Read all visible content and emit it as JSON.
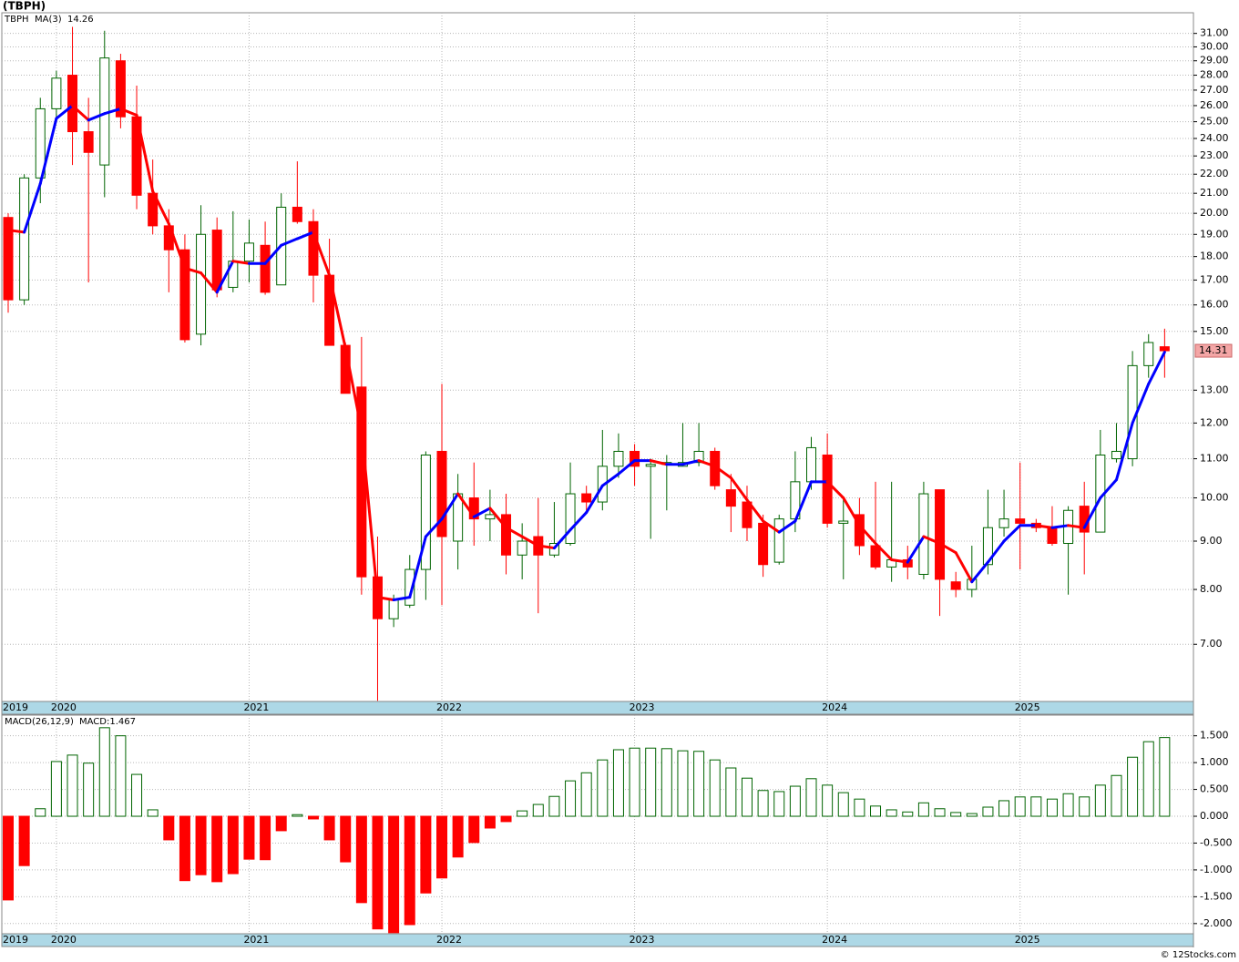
{
  "title": "(TBPH)",
  "footer": "© 12Stocks.com",
  "chart_data": [
    {
      "type": "candlestick",
      "name": "TBPH",
      "categories": [
        "2019",
        null,
        null,
        "2020",
        null,
        null,
        null,
        null,
        null,
        null,
        null,
        null,
        null,
        null,
        null,
        "2021",
        null,
        null,
        null,
        null,
        null,
        null,
        null,
        null,
        null,
        null,
        null,
        "2022",
        null,
        null,
        null,
        null,
        null,
        null,
        null,
        null,
        null,
        null,
        null,
        "2023",
        null,
        null,
        null,
        null,
        null,
        null,
        null,
        null,
        null,
        null,
        null,
        "2024",
        null,
        null,
        null,
        null,
        null,
        null,
        null,
        null,
        null,
        null,
        null,
        "2025",
        null,
        null,
        null,
        null,
        null,
        null,
        null,
        null,
        null
      ],
      "open": [
        19.8,
        16.2,
        21.8,
        25.8,
        28,
        24.4,
        22.5,
        29,
        25.3,
        21,
        19.4,
        18.3,
        14.9,
        19.2,
        16.7,
        17.8,
        18.5,
        16.8,
        20.3,
        19.6,
        17.2,
        14.5,
        13.1,
        8.25,
        7.45,
        7.7,
        8.4,
        11.2,
        9.0,
        10.0,
        9.5,
        9.6,
        8.7,
        9.1,
        8.7,
        8.95,
        10.1,
        9.9,
        10.8,
        11.2,
        10.8,
        10.85,
        10.8,
        10.9,
        11.2,
        10.2,
        9.9,
        9.4,
        8.55,
        9.5,
        10.4,
        11.1,
        9.4,
        9.6,
        8.9,
        8.45,
        8.6,
        8.3,
        10.2,
        8.15,
        8.0,
        8.5,
        9.3,
        9.5,
        9.4,
        9.3,
        8.95,
        9.8,
        9.2,
        11.0,
        11.0,
        13.8,
        14.45
      ],
      "high": [
        20,
        22,
        26.5,
        28.3,
        31.5,
        26.5,
        31.2,
        29.5,
        27.3,
        22.8,
        20.2,
        19,
        20.4,
        19.8,
        20.1,
        19.7,
        19.6,
        21.0,
        22.7,
        20.2,
        18.8,
        14.6,
        14.8,
        9.1,
        7.9,
        8.7,
        11.2,
        13.2,
        10.6,
        10.9,
        10.2,
        10.1,
        9.4,
        10.0,
        9.9,
        10.9,
        10.3,
        11.8,
        11.7,
        11.4,
        11.0,
        11.1,
        12.0,
        12.0,
        11.3,
        10.6,
        10.3,
        9.6,
        9.6,
        11.2,
        11.6,
        11.7,
        10.0,
        10.0,
        10.4,
        10.4,
        8.9,
        10.4,
        10.2,
        8.35,
        8.9,
        10.2,
        10.2,
        10.9,
        9.5,
        9.8,
        9.8,
        10.4,
        11.8,
        12.0,
        14.3,
        14.9,
        15.1
      ],
      "low": [
        15.7,
        16.0,
        20.5,
        25,
        22.5,
        16.9,
        20.8,
        24.6,
        20.2,
        19,
        16.5,
        14.6,
        14.5,
        16.3,
        16.5,
        16.9,
        16.4,
        16.8,
        19.5,
        16.1,
        14.5,
        12.9,
        7.9,
        6.1,
        7.3,
        7.65,
        7.8,
        7.7,
        8.4,
        8.9,
        9.0,
        8.3,
        8.2,
        7.55,
        8.65,
        8.9,
        9.7,
        9.7,
        10.5,
        10.3,
        9.05,
        9.7,
        10.8,
        10.8,
        10.2,
        9.2,
        9.0,
        8.25,
        8.5,
        9.2,
        10.2,
        9.3,
        8.2,
        8.7,
        8.4,
        8.15,
        8.2,
        8.2,
        7.5,
        7.85,
        7.85,
        8.3,
        9.1,
        8.4,
        9.2,
        8.9,
        7.9,
        8.3,
        9.2,
        10.9,
        10.8,
        13.4,
        13.4
      ],
      "close": [
        16.2,
        21.8,
        25.8,
        27.8,
        24.4,
        23.2,
        29.2,
        25.3,
        20.9,
        19.4,
        18.3,
        14.7,
        19,
        16.6,
        17.8,
        18.6,
        16.5,
        20.3,
        19.6,
        17.2,
        14.5,
        12.9,
        8.25,
        7.45,
        7.8,
        8.4,
        11.1,
        9.1,
        10.1,
        9.5,
        9.6,
        8.7,
        9.0,
        8.7,
        8.95,
        10.1,
        9.9,
        10.8,
        11.2,
        10.8,
        10.85,
        10.9,
        10.9,
        11.2,
        10.3,
        9.8,
        9.3,
        8.5,
        9.5,
        10.4,
        11.3,
        9.4,
        9.45,
        8.9,
        8.45,
        8.6,
        8.45,
        10.1,
        8.2,
        8.0,
        8.2,
        9.3,
        9.5,
        9.4,
        9.3,
        8.95,
        9.7,
        9.2,
        11.1,
        11.2,
        13.8,
        14.6,
        14.31
      ],
      "up_color": "#006400",
      "down_color": "#ff0000",
      "ma": {
        "name": "MA(3)",
        "up_color": "#0000ff",
        "down_color": "#ff0000",
        "values": [
          19.2,
          19.1,
          21.5,
          25.2,
          26.0,
          25.1,
          25.5,
          25.8,
          25.4,
          21.1,
          19.5,
          17.5,
          17.3,
          16.5,
          17.8,
          17.7,
          17.7,
          18.5,
          18.8,
          19.1,
          17.2,
          14.4,
          11.8,
          7.85,
          7.8,
          7.85,
          9.1,
          9.5,
          10.1,
          9.55,
          9.75,
          9.3,
          9.1,
          8.9,
          8.85,
          9.25,
          9.65,
          10.3,
          10.6,
          10.95,
          10.95,
          10.85,
          10.85,
          10.95,
          10.8,
          10.5,
          9.95,
          9.45,
          9.2,
          9.45,
          10.4,
          10.4,
          10.0,
          9.35,
          8.95,
          8.6,
          8.55,
          9.1,
          8.95,
          8.75,
          8.15,
          8.55,
          9.0,
          9.35,
          9.35,
          9.3,
          9.35,
          9.3,
          10.0,
          10.45,
          12.0,
          13.2,
          14.26
        ]
      },
      "log_scale": true,
      "grid": true,
      "ylim": [
        6.09,
        32.6
      ],
      "yticks": [
        {
          "value": 7,
          "label": "7.00"
        },
        {
          "value": 8,
          "label": "8.00"
        },
        {
          "value": 9,
          "label": "9.00"
        },
        {
          "value": 10,
          "label": "10.00"
        },
        {
          "value": 11,
          "label": "11.00"
        },
        {
          "value": 12,
          "label": "12.00"
        },
        {
          "value": 13,
          "label": "13.00"
        },
        {
          "value": 15,
          "label": "15.00"
        },
        {
          "value": 16,
          "label": "16.00"
        },
        {
          "value": 17,
          "label": "17.00"
        },
        {
          "value": 18,
          "label": "18.00"
        },
        {
          "value": 19,
          "label": "19.00"
        },
        {
          "value": 20,
          "label": "20.00"
        },
        {
          "value": 21,
          "label": "21.00"
        },
        {
          "value": 22,
          "label": "22.00"
        },
        {
          "value": 23,
          "label": "23.00"
        },
        {
          "value": 24,
          "label": "24.00"
        },
        {
          "value": 25,
          "label": "25.00"
        },
        {
          "value": 26,
          "label": "26.00"
        },
        {
          "value": 27,
          "label": "27.00"
        },
        {
          "value": 28,
          "label": "28.00"
        },
        {
          "value": 29,
          "label": "29.00"
        },
        {
          "value": 30,
          "label": "30.00"
        },
        {
          "value": 31,
          "label": "31.00"
        }
      ]
    },
    {
      "type": "macd",
      "name": "MACD(26,12,9)",
      "current_label": "MACD:1.467",
      "categories": [
        "2019",
        null,
        null,
        "2020",
        null,
        null,
        null,
        null,
        null,
        null,
        null,
        null,
        null,
        null,
        null,
        "2021",
        null,
        null,
        null,
        null,
        null,
        null,
        null,
        null,
        null,
        null,
        null,
        "2022",
        null,
        null,
        null,
        null,
        null,
        null,
        null,
        null,
        null,
        null,
        null,
        "2023",
        null,
        null,
        null,
        null,
        null,
        null,
        null,
        null,
        null,
        null,
        null,
        "2024",
        null,
        null,
        null,
        null,
        null,
        null,
        null,
        null,
        null,
        null,
        null,
        "2025",
        null,
        null,
        null,
        null,
        null,
        null,
        null,
        null,
        null
      ],
      "values": [
        -1.56,
        -0.92,
        0.14,
        1.02,
        1.14,
        0.99,
        1.65,
        1.5,
        0.78,
        0.12,
        -0.44,
        -1.2,
        -1.09,
        -1.22,
        -1.07,
        -0.8,
        -0.81,
        -0.27,
        0.03,
        -0.05,
        -0.44,
        -0.85,
        -1.61,
        -2.1,
        -2.17,
        -2.02,
        -1.43,
        -1.15,
        -0.76,
        -0.49,
        -0.22,
        -0.1,
        0.1,
        0.22,
        0.37,
        0.66,
        0.81,
        1.05,
        1.24,
        1.27,
        1.27,
        1.26,
        1.22,
        1.21,
        1.05,
        0.9,
        0.71,
        0.48,
        0.46,
        0.56,
        0.7,
        0.58,
        0.44,
        0.32,
        0.19,
        0.12,
        0.08,
        0.25,
        0.14,
        0.07,
        0.05,
        0.17,
        0.29,
        0.36,
        0.36,
        0.32,
        0.42,
        0.36,
        0.58,
        0.76,
        1.1,
        1.39,
        1.467
      ],
      "up_color": "#006400",
      "down_color": "#ff0000",
      "grid": true,
      "ylim": [
        -2.19,
        1.885
      ],
      "yticks": [
        {
          "value": 1.5,
          "label": "1.500"
        },
        {
          "value": 1,
          "label": "1.000"
        },
        {
          "value": 0.5,
          "label": "0.500"
        },
        {
          "value": 0,
          "label": "0.000"
        },
        {
          "value": -0.5,
          "label": "-0.500"
        },
        {
          "value": -1,
          "label": "-1.000"
        },
        {
          "value": -1.5,
          "label": "-1.500"
        },
        {
          "value": -2,
          "label": "-2.000"
        }
      ]
    }
  ]
}
